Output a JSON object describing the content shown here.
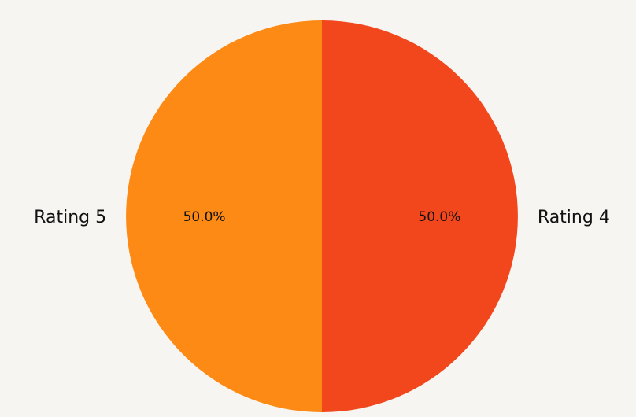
{
  "chart_data": {
    "type": "pie",
    "slices": [
      {
        "label": "Rating 4",
        "value": 50,
        "pct_label": "50.0%",
        "color": "#f2461d"
      },
      {
        "label": "Rating 5",
        "value": 50,
        "pct_label": "50.0%",
        "color": "#fc8a14"
      }
    ],
    "start_angle_deg": 90,
    "direction": "clockwise",
    "legend": "none"
  }
}
